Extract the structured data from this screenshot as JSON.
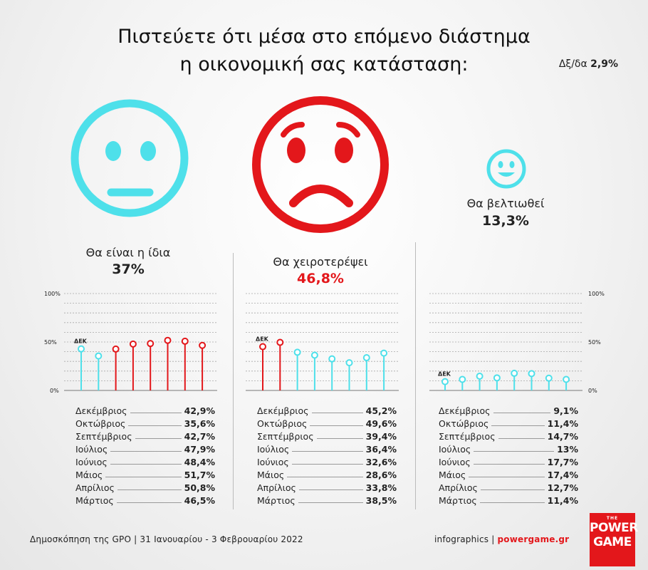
{
  "title_line1": "Πιστεύετε ότι μέσα στο επόμενο διάστημα",
  "title_line2": "η οικονομική σας κατάσταση:",
  "dkdt_label": "Δξ/δα",
  "dkdt_value": "2,9%",
  "colors": {
    "cyan": "#4ee0ea",
    "red": "#e3171b",
    "text": "#222222",
    "grid": "#9a9a9a"
  },
  "categories": [
    {
      "label": "Θα είναι η ίδια",
      "value": "37%"
    },
    {
      "label": "Θα χειροτερέψει",
      "value": "46,8%"
    },
    {
      "label": "Θα βελτιωθεί",
      "value": "13,3%"
    }
  ],
  "axis": {
    "top": "100%",
    "mid": "50%",
    "bottom": "0%"
  },
  "marker_label": "ΔΕΚ",
  "chart_data": [
    {
      "type": "line",
      "series": [
        {
          "name": "Θα είναι η ίδια",
          "values": [
            42.9,
            35.6,
            42.7,
            47.9,
            48.4,
            51.7,
            50.8,
            46.5
          ]
        }
      ],
      "categories": [
        "Δεκέμβριος",
        "Οκτώβριος",
        "Σεπτέμβριος",
        "Ιούλιος",
        "Ιούνιος",
        "Μάιος",
        "Απρίλιος",
        "Μάρτιος"
      ],
      "labels": [
        "42,9%",
        "35,6%",
        "42,7%",
        "47,9%",
        "48,4%",
        "51,7%",
        "50,8%",
        "46,5%"
      ],
      "colors": [
        "cyan",
        "cyan",
        "red",
        "red",
        "red",
        "red",
        "red",
        "red"
      ],
      "ylim": [
        0,
        100
      ]
    },
    {
      "type": "line",
      "series": [
        {
          "name": "Θα χειροτερέψει",
          "values": [
            45.2,
            49.6,
            39.4,
            36.4,
            32.6,
            28.6,
            33.8,
            38.5
          ]
        }
      ],
      "categories": [
        "Δεκέμβριος",
        "Οκτώβριος",
        "Σεπτέμβριος",
        "Ιούλιος",
        "Ιούνιος",
        "Μάιος",
        "Απρίλιος",
        "Μάρτιος"
      ],
      "labels": [
        "45,2%",
        "49,6%",
        "39,4%",
        "36,4%",
        "32,6%",
        "28,6%",
        "33,8%",
        "38,5%"
      ],
      "colors": [
        "red",
        "red",
        "cyan",
        "cyan",
        "cyan",
        "cyan",
        "cyan",
        "cyan"
      ],
      "ylim": [
        0,
        100
      ]
    },
    {
      "type": "line",
      "series": [
        {
          "name": "Θα βελτιωθεί",
          "values": [
            9.1,
            11.4,
            14.7,
            13,
            17.7,
            17.4,
            12.7,
            11.4
          ]
        }
      ],
      "categories": [
        "Δεκέμβριος",
        "Οκτώβριος",
        "Σεπτέμβριος",
        "Ιούλιος",
        "Ιούνιος",
        "Μάιος",
        "Απρίλιος",
        "Μάρτιος"
      ],
      "labels": [
        "9,1%",
        "11,4%",
        "14,7%",
        "13%",
        "17,7%",
        "17,4%",
        "12,7%",
        "11,4%"
      ],
      "colors": [
        "cyan",
        "cyan",
        "cyan",
        "cyan",
        "cyan",
        "cyan",
        "cyan",
        "cyan"
      ],
      "ylim": [
        0,
        100
      ]
    }
  ],
  "footer": {
    "source": "Δημοσκόπηση της GPO | 31 Ιανουαρίου - 3 Φεβρουαρίου 2022",
    "infographics": "infographics |",
    "site": "powergame.gr"
  },
  "logo": {
    "the": "THE",
    "line1": "POWER",
    "line2": "GAME"
  }
}
